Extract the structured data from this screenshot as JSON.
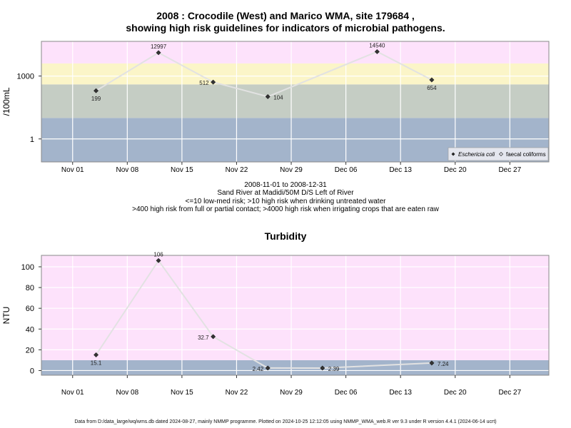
{
  "titles": {
    "main_line1": "2008 : Crocodile (West) and Marico WMA, site 179684 ,",
    "main_line2": "showing high risk guidelines for indicators of microbial pathogens.",
    "turbidity": "Turbidity"
  },
  "captions": {
    "date_range": "2008-11-01 to 2008-12-31",
    "site": "Sand River at Madidi/50M D/S Left of River",
    "guide1": "<=10 low-med risk; >10 high risk when drinking untreated water",
    "guide2": ">400 high risk from full or partial contact; >4000 high risk when irrigating crops that are eaten raw"
  },
  "footer": "Data from D:/data_large/wq/wms.db dated 2024-08-27, mainly NMMP programme. Plotted on 2024-10-25 12:12:05 using NMMP_WMA_web.R ver 9.3 under R version 4.4.1 (2024-06-14 ucrt)",
  "colors": {
    "pink": "#fde2fb",
    "yellow": "#fbf5c8",
    "grey": "#c5cdc4",
    "blue": "#a3b4cb",
    "line": "#e2e2e2",
    "point": "#333333",
    "frame": "#888888"
  },
  "chart_data": [
    {
      "type": "line",
      "ylabel": "/100mL",
      "yscale": "log",
      "ylim": [
        0.08,
        45000
      ],
      "xlim": [
        "2008-10-28",
        "2009-01-01"
      ],
      "x_ticks": [
        "Nov 01",
        "Nov 08",
        "Nov 15",
        "Nov 22",
        "Nov 29",
        "Dec 06",
        "Dec 13",
        "Dec 20",
        "Dec 27"
      ],
      "x_tick_dates": [
        "2008-11-01",
        "2008-11-08",
        "2008-11-15",
        "2008-11-22",
        "2008-11-29",
        "2008-12-06",
        "2008-12-13",
        "2008-12-20",
        "2008-12-27"
      ],
      "y_ticks": [
        1,
        1000
      ],
      "y_tick_labels": [
        "1",
        "1000"
      ],
      "bands": [
        {
          "from": 0.08,
          "to": 10,
          "color": "#a3b4cb"
        },
        {
          "from": 10,
          "to": 400,
          "color": "#c5cdc4"
        },
        {
          "from": 400,
          "to": 4000,
          "color": "#fbf5c8"
        },
        {
          "from": 4000,
          "to": 45000,
          "color": "#fde2fb"
        }
      ],
      "series": [
        {
          "name": "Eschericia coli",
          "x": [
            "2008-11-04",
            "2008-11-12",
            "2008-11-19",
            "2008-11-26",
            "2008-12-10",
            "2008-12-17"
          ],
          "values": [
            199,
            12997,
            512,
            104,
            14540,
            654
          ],
          "labels": [
            "199",
            "12997",
            "512",
            "104",
            "14540",
            "654"
          ]
        }
      ],
      "legend": {
        "position": "bottom-right",
        "entries": [
          "Eschericia coli",
          "faecal coliforms"
        ]
      }
    },
    {
      "type": "line",
      "title": "Turbidity",
      "ylabel": "NTU",
      "ylim": [
        -4.5,
        111
      ],
      "xlim": [
        "2008-10-28",
        "2009-01-01"
      ],
      "x_ticks": [
        "Nov 01",
        "Nov 08",
        "Nov 15",
        "Nov 22",
        "Nov 29",
        "Dec 06",
        "Dec 13",
        "Dec 20",
        "Dec 27"
      ],
      "x_tick_dates": [
        "2008-11-01",
        "2008-11-08",
        "2008-11-15",
        "2008-11-22",
        "2008-11-29",
        "2008-12-06",
        "2008-12-13",
        "2008-12-20",
        "2008-12-27"
      ],
      "y_ticks": [
        0,
        20,
        40,
        60,
        80,
        100
      ],
      "y_tick_labels": [
        "0",
        "20",
        "40",
        "60",
        "80",
        "100"
      ],
      "bands": [
        {
          "from": -4.5,
          "to": 10,
          "color": "#a3b4cb"
        },
        {
          "from": 10,
          "to": 111,
          "color": "#fde2fb"
        }
      ],
      "series": [
        {
          "name": "",
          "x": [
            "2008-11-04",
            "2008-11-12",
            "2008-11-19",
            "2008-11-26",
            "2008-12-03",
            "2008-12-17"
          ],
          "values": [
            15.1,
            106,
            32.7,
            2.42,
            2.39,
            7.24
          ],
          "labels": [
            "15.1",
            "106",
            "32.7",
            "2.42",
            "2.39",
            "7.24"
          ]
        }
      ]
    }
  ]
}
